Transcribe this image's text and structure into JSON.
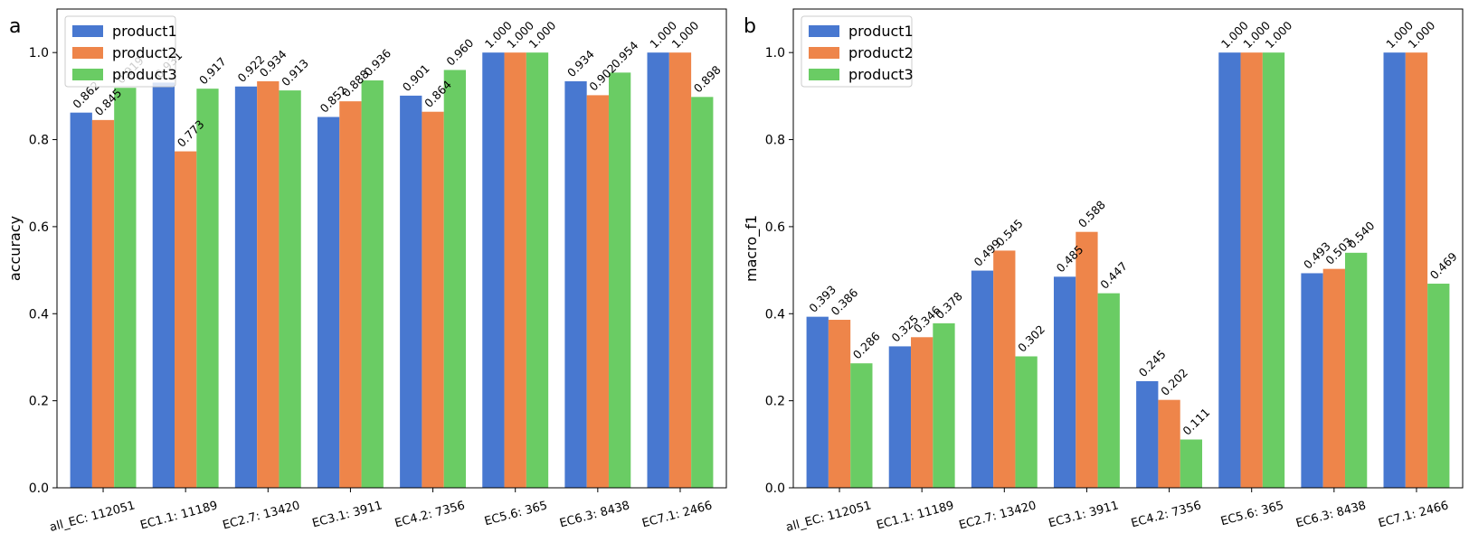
{
  "chart_data": [
    {
      "type": "bar",
      "panel_letter": "a",
      "title": "",
      "xlabel": "",
      "ylabel": "accuracy",
      "ylim": [
        0,
        1.1
      ],
      "yticks": [
        "0.0",
        "0.2",
        "0.4",
        "0.6",
        "0.8",
        "1.0"
      ],
      "grid": false,
      "legend_position": "top-left",
      "categories": [
        "all_EC: 112051",
        "EC1.1: 11189",
        "EC2.7: 13420",
        "EC3.1: 3911",
        "EC4.2: 7356",
        "EC5.6: 365",
        "EC6.3: 8438",
        "EC7.1: 2466"
      ],
      "series": [
        {
          "name": "product1",
          "color": "#4878d0",
          "values": [
            0.862,
            0.931,
            0.922,
            0.852,
            0.901,
            1.0,
            0.934,
            1.0
          ],
          "labels": [
            "0.862",
            "0.931",
            "0.922",
            "0.852",
            "0.901",
            "1.000",
            "0.934",
            "1.000"
          ]
        },
        {
          "name": "product2",
          "color": "#ee854a",
          "values": [
            0.845,
            0.773,
            0.934,
            0.888,
            0.864,
            1.0,
            0.902,
            1.0
          ],
          "labels": [
            "0.845",
            "0.773",
            "0.934",
            "0.888",
            "0.864",
            "1.000",
            "0.902",
            "1.000"
          ]
        },
        {
          "name": "product3",
          "color": "#6acc64",
          "values": [
            0.919,
            0.917,
            0.913,
            0.936,
            0.96,
            1.0,
            0.954,
            0.898
          ],
          "labels": [
            "0.919",
            "0.917",
            "0.913",
            "0.936",
            "0.960",
            "1.000",
            "0.954",
            "0.898"
          ]
        }
      ]
    },
    {
      "type": "bar",
      "panel_letter": "b",
      "title": "",
      "xlabel": "",
      "ylabel": "macro_f1",
      "ylim": [
        0,
        1.1
      ],
      "yticks": [
        "0.0",
        "0.2",
        "0.4",
        "0.6",
        "0.8",
        "1.0"
      ],
      "grid": false,
      "legend_position": "top-left",
      "categories": [
        "all_EC: 112051",
        "EC1.1: 11189",
        "EC2.7: 13420",
        "EC3.1: 3911",
        "EC4.2: 7356",
        "EC5.6: 365",
        "EC6.3: 8438",
        "EC7.1: 2466"
      ],
      "series": [
        {
          "name": "product1",
          "color": "#4878d0",
          "values": [
            0.393,
            0.325,
            0.499,
            0.485,
            0.245,
            1.0,
            0.493,
            1.0
          ],
          "labels": [
            "0.393",
            "0.325",
            "0.499",
            "0.485",
            "0.245",
            "1.000",
            "0.493",
            "1.000"
          ]
        },
        {
          "name": "product2",
          "color": "#ee854a",
          "values": [
            0.386,
            0.346,
            0.545,
            0.588,
            0.202,
            1.0,
            0.503,
            1.0
          ],
          "labels": [
            "0.386",
            "0.346",
            "0.545",
            "0.588",
            "0.202",
            "1.000",
            "0.503",
            "1.000"
          ]
        },
        {
          "name": "product3",
          "color": "#6acc64",
          "values": [
            0.286,
            0.378,
            0.302,
            0.447,
            0.111,
            1.0,
            0.54,
            0.469
          ],
          "labels": [
            "0.286",
            "0.378",
            "0.302",
            "0.447",
            "0.111",
            "1.000",
            "0.540",
            "0.469"
          ]
        }
      ]
    }
  ]
}
